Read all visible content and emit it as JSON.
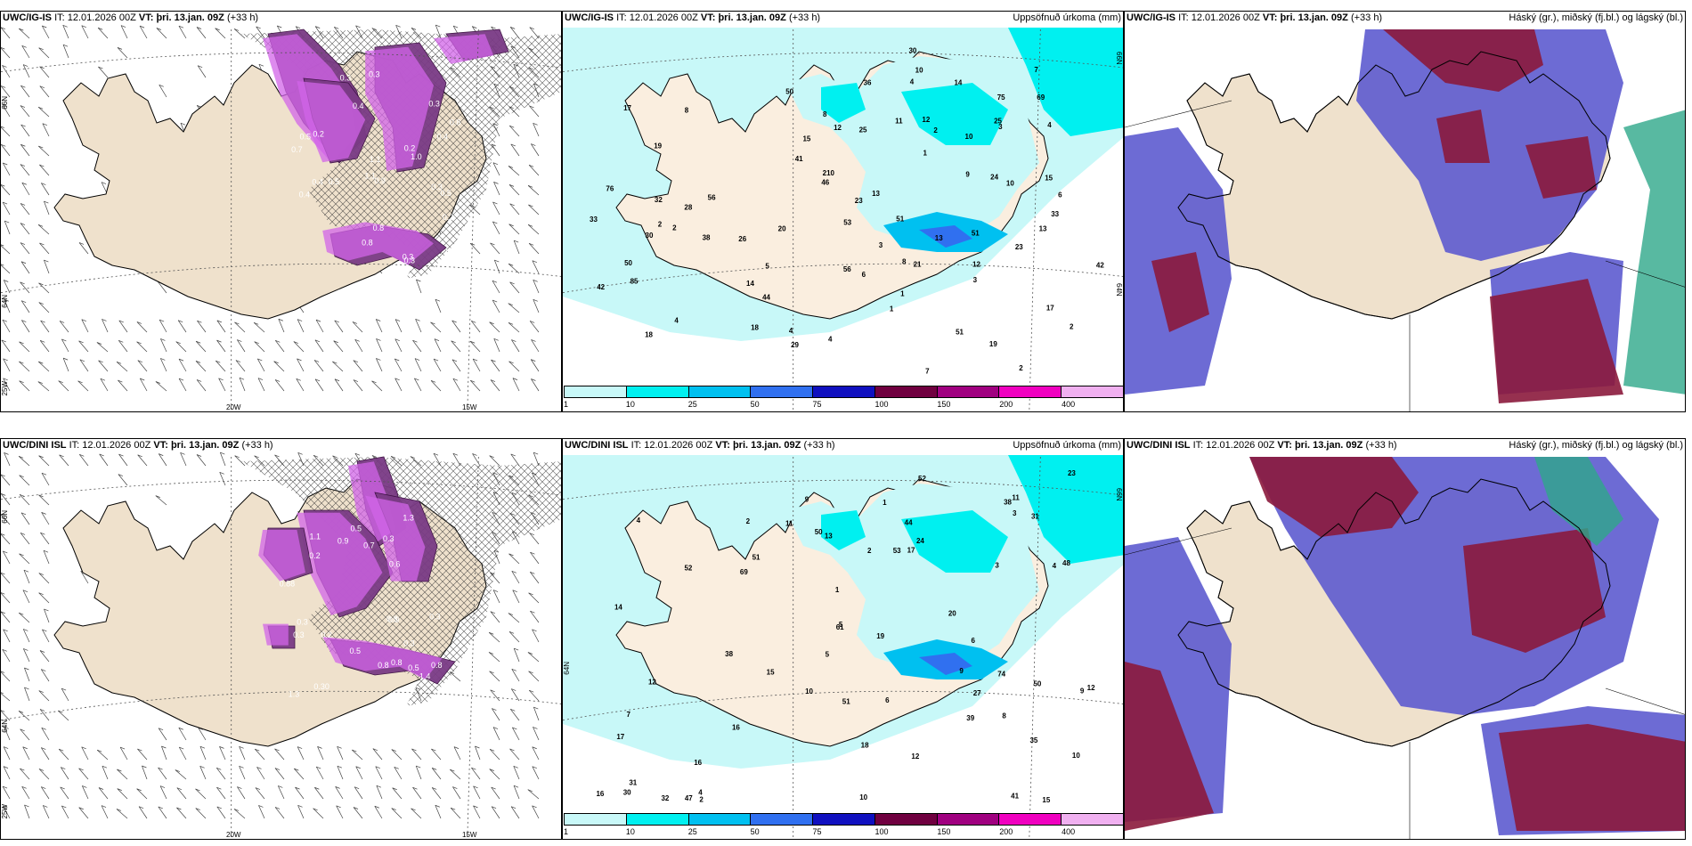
{
  "panels": [
    {
      "model": "UWC/IG-IS",
      "it_label": "IT:",
      "it": "12.01.2026 00Z",
      "vt_label": "VT:",
      "vt": "þri. 13.jan. 09Z",
      "lead": "(+33 h)",
      "right": "",
      "lat_labels": [
        "66N",
        "64N"
      ],
      "lon_labels": [
        "20W",
        "15W"
      ],
      "side_label": "25W"
    },
    {
      "model": "UWC/IG-IS",
      "it_label": "IT:",
      "it": "12.01.2026 00Z",
      "vt_label": "VT:",
      "vt": "þri. 13.jan. 09Z",
      "lead": "(+33 h)",
      "right": "Uppsöfnuð úrkoma (mm)",
      "lat_labels": [
        "66N",
        "64N"
      ]
    },
    {
      "model": "UWC/IG-IS",
      "it_label": "IT:",
      "it": "12.01.2026 00Z",
      "vt_label": "VT:",
      "vt": "þri. 13.jan. 09Z",
      "lead": "(+33 h)",
      "right": "Háský (gr.), miðský (fj.bl.) og lágský (bl.)"
    },
    {
      "model": "UWC/DINI ISL",
      "it_label": "IT:",
      "it": "12.01.2026 00Z",
      "vt_label": "VT:",
      "vt": "þri. 13.jan. 09Z",
      "lead": "(+33 h)",
      "right": "",
      "lat_labels": [
        "66N",
        "64N"
      ],
      "lon_labels": [
        "20W",
        "15W"
      ],
      "side_label": "25W"
    },
    {
      "model": "UWC/DINI ISL",
      "it_label": "IT:",
      "it": "12.01.2026 00Z",
      "vt_label": "VT:",
      "vt": "þri. 13.jan. 09Z",
      "lead": "(+33 h)",
      "right": "Uppsöfnuð úrkoma (mm)",
      "lat_labels": [
        "66N",
        "64N"
      ]
    },
    {
      "model": "UWC/DINI ISL",
      "it_label": "IT:",
      "it": "12.01.2026 00Z",
      "vt_label": "VT:",
      "vt": "þri. 13.jan. 09Z",
      "lead": "(+33 h)",
      "right": "Háský (gr.), miðský (fj.bl.) og lágský (bl.)"
    }
  ],
  "colorbar": {
    "labels": [
      "1",
      "10",
      "25",
      "50",
      "75",
      "100",
      "150",
      "200",
      "400"
    ],
    "colors": [
      "#c8f8f8",
      "#00f0f0",
      "#00c0f0",
      "#3070f0",
      "#1010c0",
      "#700040",
      "#a00080",
      "#f000c0",
      "#f0b0f0"
    ]
  },
  "precip_top": [
    "2",
    "2",
    "8",
    "17",
    "17",
    "19",
    "4",
    "26",
    "10",
    "12",
    "2",
    "19",
    "44",
    "50",
    "51",
    "85",
    "51",
    "23",
    "76",
    "18",
    "7",
    "25",
    "24",
    "42",
    "33",
    "32",
    "38",
    "53",
    "46",
    "69",
    "21",
    "30",
    "14",
    "12",
    "15",
    "23",
    "13",
    "51",
    "75",
    "7",
    "5",
    "6",
    "18",
    "30",
    "20",
    "28",
    "4",
    "10",
    "11",
    "56",
    "13",
    "15",
    "12",
    "10",
    "41",
    "33",
    "29",
    "210",
    "3",
    "9",
    "4",
    "25",
    "8",
    "36",
    "42",
    "50",
    "56",
    "13",
    "14",
    "3",
    "3",
    "4",
    "1",
    "2",
    "1",
    "6",
    "8",
    "1",
    "2",
    "4"
  ],
  "precip_bottom": [
    "1",
    "15",
    "27",
    "10",
    "6",
    "5",
    "15",
    "5",
    "41",
    "38",
    "50",
    "52",
    "44",
    "23",
    "35",
    "39",
    "51",
    "16",
    "9",
    "4",
    "18",
    "17",
    "14",
    "47",
    "17",
    "30",
    "51",
    "6",
    "69",
    "3",
    "2",
    "7",
    "9",
    "16",
    "9",
    "20",
    "12",
    "53",
    "12",
    "11",
    "16",
    "1",
    "10",
    "2",
    "11",
    "19",
    "38",
    "31",
    "32",
    "31",
    "52",
    "61",
    "74",
    "50",
    "48",
    "10",
    "4",
    "8",
    "24",
    "12",
    "13",
    "2",
    "3",
    "4"
  ],
  "cloud_top_legend": "",
  "dz_labels_top": [
    "0.2",
    "0.3",
    "0.3",
    "0.4",
    "0.4",
    "0.3",
    "0.8",
    "0.4",
    "0.9",
    "0.8",
    "0.3",
    "0.2",
    "1.0",
    "0.3",
    "0.8",
    "0.5",
    "0.4",
    "0.3",
    "1.0",
    "0.7",
    "1.1",
    "1.1",
    "0.5",
    "0.5",
    "0.2"
  ],
  "dz_labels_bottom": [
    "0.5",
    "0.5",
    "0.30",
    "0.2",
    "1.3",
    "1.3",
    "0.3",
    "0.3",
    "0.8",
    "0.8",
    "0.9",
    "0.88",
    "0.3",
    "0.6",
    "0.7",
    "0.9",
    "1.4",
    "0.8",
    "0.8",
    "1.1",
    "0.5",
    "0.3",
    "0.3",
    "0.2"
  ]
}
